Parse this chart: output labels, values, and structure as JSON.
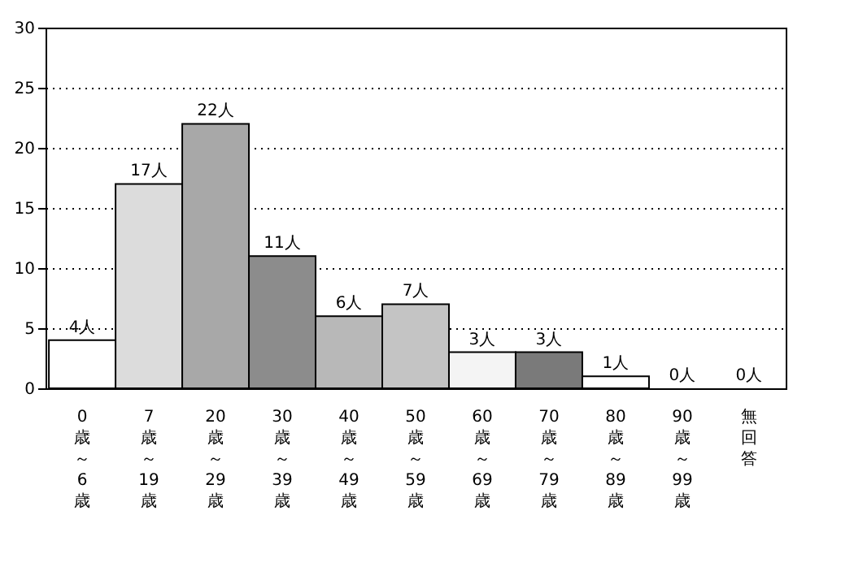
{
  "chart_data": {
    "type": "bar",
    "categories": [
      "0歳～6歳",
      "7歳～19歳",
      "20歳～29歳",
      "30歳～39歳",
      "40歳～49歳",
      "50歳～59歳",
      "60歳～69歳",
      "70歳～79歳",
      "80歳～89歳",
      "90歳～99歳",
      "無回答"
    ],
    "values": [
      4,
      17,
      22,
      11,
      6,
      7,
      3,
      3,
      1,
      0,
      0
    ],
    "colors": [
      "#ffffff",
      "#dcdcdc",
      "#a8a8a8",
      "#8c8c8c",
      "#b8b8b8",
      "#c4c4c4",
      "#f4f4f4",
      "#7a7a7a",
      "#ffffff",
      "#ffffff",
      "#ffffff"
    ],
    "value_labels": [
      "4人",
      "17人",
      "22人",
      "11人",
      "6人",
      "7人",
      "3人",
      "3人",
      "1人",
      "0人",
      "0人"
    ],
    "ylim": [
      0,
      30
    ],
    "yticks": [
      0,
      5,
      10,
      15,
      20,
      25,
      30
    ],
    "grid": "y",
    "line_style": "dotted"
  }
}
